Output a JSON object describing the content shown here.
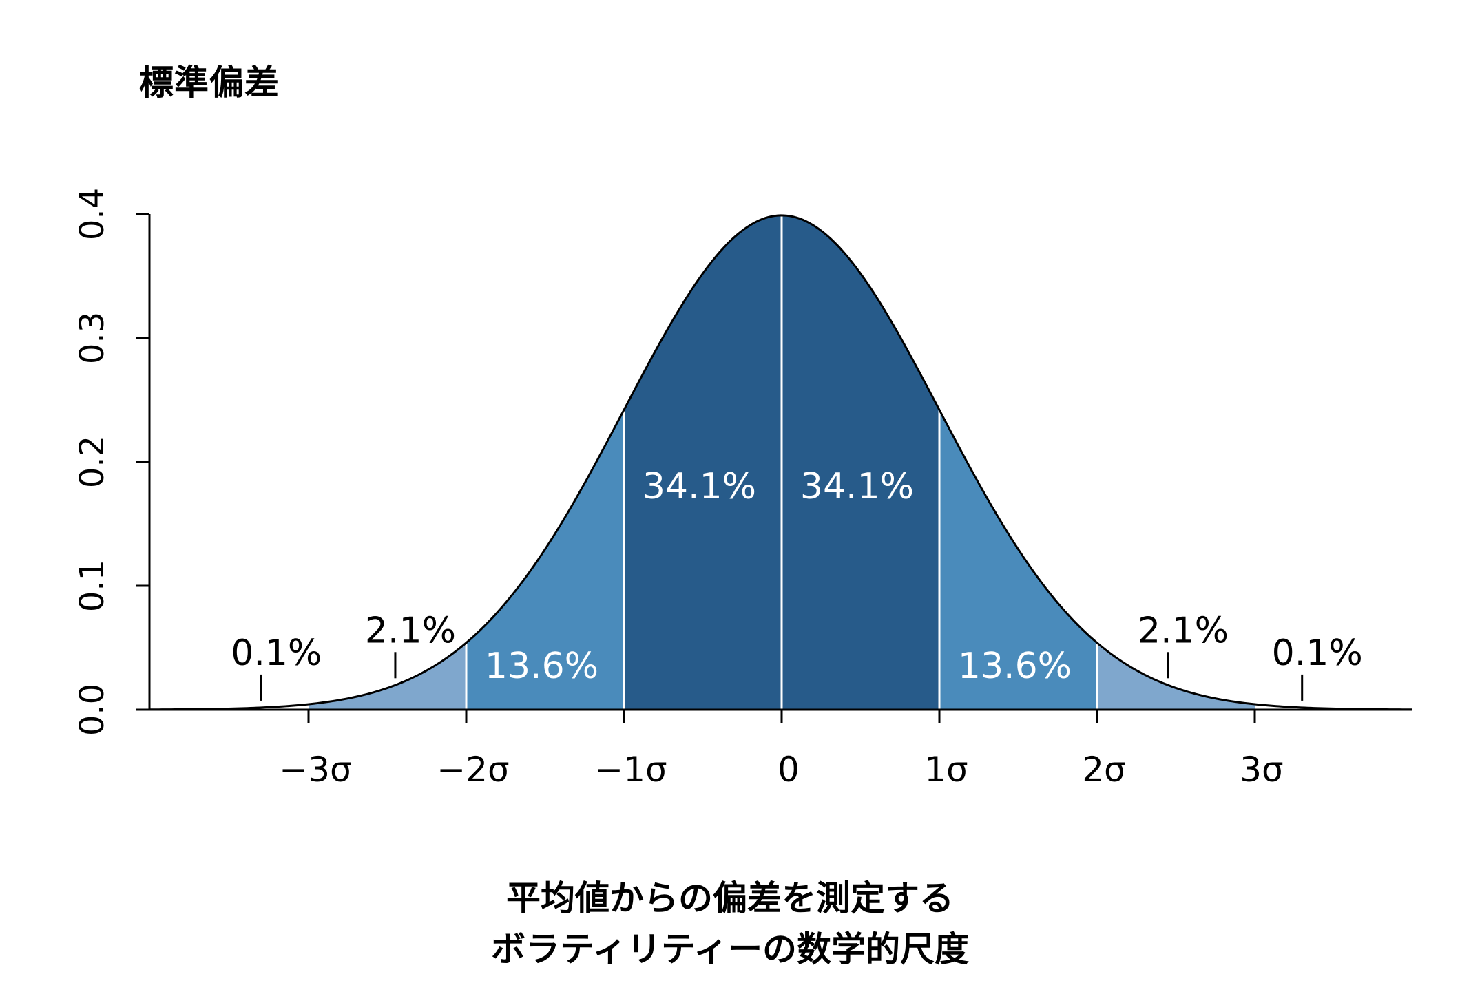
{
  "chart_data": {
    "type": "area",
    "title": "標準偏差",
    "xlabel_lines": [
      "平均値からの偏差を測定する",
      "ボラティリティーの数学的尺度"
    ],
    "ylabel": "",
    "xlim": [
      -4,
      4
    ],
    "ylim": [
      0,
      0.4
    ],
    "yticks": [
      {
        "value": 0.0,
        "label": "0.0"
      },
      {
        "value": 0.1,
        "label": "0.1"
      },
      {
        "value": 0.2,
        "label": "0.2"
      },
      {
        "value": 0.3,
        "label": "0.3"
      },
      {
        "value": 0.4,
        "label": "0.4"
      }
    ],
    "xticks": [
      {
        "value": -3,
        "label": "−3σ"
      },
      {
        "value": -2,
        "label": "−2σ"
      },
      {
        "value": -1,
        "label": "−1σ"
      },
      {
        "value": 0,
        "label": "0"
      },
      {
        "value": 1,
        "label": "1σ"
      },
      {
        "value": 2,
        "label": "2σ"
      },
      {
        "value": 3,
        "label": "3σ"
      }
    ],
    "curve": "standard normal density",
    "bands": [
      {
        "from": -3,
        "to": -2,
        "color": "#7fa7cd"
      },
      {
        "from": -2,
        "to": -1,
        "color": "#4a8bbb"
      },
      {
        "from": -1,
        "to": 0,
        "color": "#275b8a"
      },
      {
        "from": 0,
        "to": 1,
        "color": "#275b8a"
      },
      {
        "from": 1,
        "to": 2,
        "color": "#4a8bbb"
      },
      {
        "from": 2,
        "to": 3,
        "color": "#7fa7cd"
      }
    ],
    "band_labels": [
      {
        "x": -0.5,
        "y": 0.18,
        "label": "34.1%",
        "color": "#ffffff"
      },
      {
        "x": 0.5,
        "y": 0.18,
        "label": "34.1%",
        "color": "#ffffff"
      },
      {
        "x": -1.5,
        "y": 0.035,
        "label": "13.6%",
        "color": "#ffffff"
      },
      {
        "x": 1.5,
        "y": 0.035,
        "label": "13.6%",
        "color": "#ffffff"
      }
    ],
    "tail_labels": [
      {
        "x": -3.3,
        "label": "0.1%"
      },
      {
        "x": -2.45,
        "label": "2.1%"
      },
      {
        "x": 2.45,
        "label": "2.1%"
      },
      {
        "x": 3.3,
        "label": "0.1%"
      }
    ],
    "separator_color": "#ffffff",
    "curve_color": "#000000"
  }
}
